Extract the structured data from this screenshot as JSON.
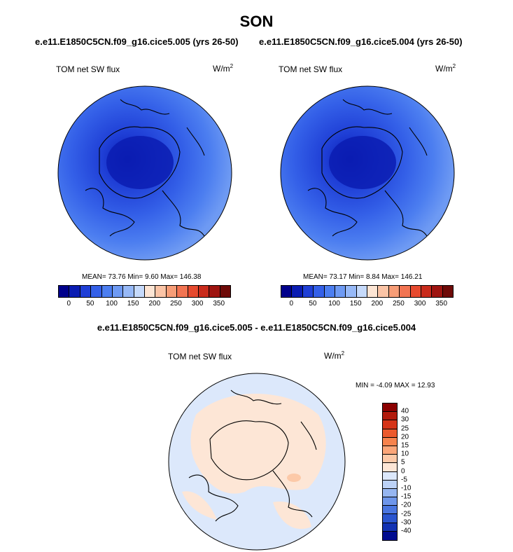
{
  "title": "SON",
  "panels": [
    {
      "case": "e.e11.E1850C5CN.f09_g16.cice5.005 (yrs 26-50)",
      "variable": "TOM net SW flux",
      "units_base": "W/m",
      "units_exp": "2",
      "stats": "MEAN=  73.76  Min=   9.60  Max= 146.38",
      "colorbar_ticks": [
        "0",
        "50",
        "100",
        "150",
        "200",
        "250",
        "300",
        "350"
      ]
    },
    {
      "case": "e.e11.E1850C5CN.f09_g16.cice5.004 (yrs 26-50)",
      "variable": "TOM net SW flux",
      "units_base": "W/m",
      "units_exp": "2",
      "stats": "MEAN=  73.17  Min=   8.84  Max= 146.21",
      "colorbar_ticks": [
        "0",
        "50",
        "100",
        "150",
        "200",
        "250",
        "300",
        "350"
      ]
    }
  ],
  "difference": {
    "title": "e.e11.E1850C5CN.f09_g16.cice5.005 - e.e11.E1850C5CN.f09_g16.cice5.004",
    "variable": "TOM net SW flux",
    "units_base": "W/m",
    "units_exp": "2",
    "stats": "MIN = -4.09 MAX = 12.93",
    "colorbar_ticks": [
      "40",
      "30",
      "25",
      "20",
      "15",
      "10",
      "5",
      "0",
      "-5",
      "-10",
      "-15",
      "-20",
      "-25",
      "-30",
      "-40"
    ]
  },
  "colors": {
    "abs_colorbar": [
      "#00008b",
      "#0a1cb2",
      "#1f3fd6",
      "#3460e8",
      "#4c7ef0",
      "#6e9af3",
      "#97b9f7",
      "#c6dafb",
      "#fde5d4",
      "#fbc4a6",
      "#f79d77",
      "#f27452",
      "#e64a2f",
      "#c92b1c",
      "#9e1410",
      "#6e0a08"
    ],
    "diff_colorbar": [
      "#8b0000",
      "#b21a0c",
      "#d63418",
      "#ec5a2d",
      "#f7834d",
      "#fba679",
      "#fcc9a8",
      "#fde6d6",
      "#dce8fb",
      "#bcd2f7",
      "#96b6f1",
      "#6e96ea",
      "#4a76e0",
      "#2a55cf",
      "#1232b3",
      "#000b8f"
    ],
    "coast": "#000000"
  }
}
